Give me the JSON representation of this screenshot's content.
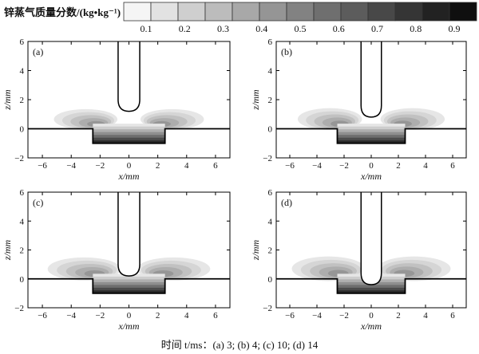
{
  "colorbar": {
    "title": "锌蒸气质量分数/(kg•kg⁻¹)",
    "tick_labels": [
      "0.1",
      "0.2",
      "0.3",
      "0.4",
      "0.5",
      "0.6",
      "0.7",
      "0.8",
      "0.9"
    ],
    "levels": 13
  },
  "caption": "时间 t/ms：(a) 3; (b) 4; (c) 10; (d) 14",
  "chart_data": [
    {
      "type": "heatmap",
      "panel_label": "(a)",
      "time_ms": 3,
      "xlabel": "x/mm",
      "ylabel": "z/mm",
      "xlim": [
        -7,
        7
      ],
      "ylim": [
        -2,
        6
      ],
      "xticks": [
        -6,
        -4,
        -2,
        0,
        2,
        4,
        6
      ],
      "yticks": [
        -2,
        0,
        2,
        4,
        6
      ],
      "electrode_tip_z_mm": 1.2,
      "pool_half_width_mm": 2.5,
      "pool_depth_mm": 1.0
    },
    {
      "type": "heatmap",
      "panel_label": "(b)",
      "time_ms": 4,
      "xlabel": "x/mm",
      "ylabel": "z/mm",
      "xlim": [
        -7,
        7
      ],
      "ylim": [
        -2,
        6
      ],
      "xticks": [
        -6,
        -4,
        -2,
        0,
        2,
        4,
        6
      ],
      "yticks": [
        -2,
        0,
        2,
        4,
        6
      ],
      "electrode_tip_z_mm": 0.8,
      "pool_half_width_mm": 2.5,
      "pool_depth_mm": 1.0
    },
    {
      "type": "heatmap",
      "panel_label": "(c)",
      "time_ms": 10,
      "xlabel": "x/mm",
      "ylabel": "z/mm",
      "xlim": [
        -7,
        7
      ],
      "ylim": [
        -2,
        6
      ],
      "xticks": [
        -6,
        -4,
        -2,
        0,
        2,
        4,
        6
      ],
      "yticks": [
        -2,
        0,
        2,
        4,
        6
      ],
      "electrode_tip_z_mm": 0.2,
      "pool_half_width_mm": 2.5,
      "pool_depth_mm": 1.0
    },
    {
      "type": "heatmap",
      "panel_label": "(d)",
      "time_ms": 14,
      "xlabel": "x/mm",
      "ylabel": "z/mm",
      "xlim": [
        -7,
        7
      ],
      "ylim": [
        -2,
        6
      ],
      "xticks": [
        -6,
        -4,
        -2,
        0,
        2,
        4,
        6
      ],
      "yticks": [
        -2,
        0,
        2,
        4,
        6
      ],
      "electrode_tip_z_mm": -0.4,
      "pool_half_width_mm": 2.5,
      "pool_depth_mm": 1.0
    }
  ]
}
